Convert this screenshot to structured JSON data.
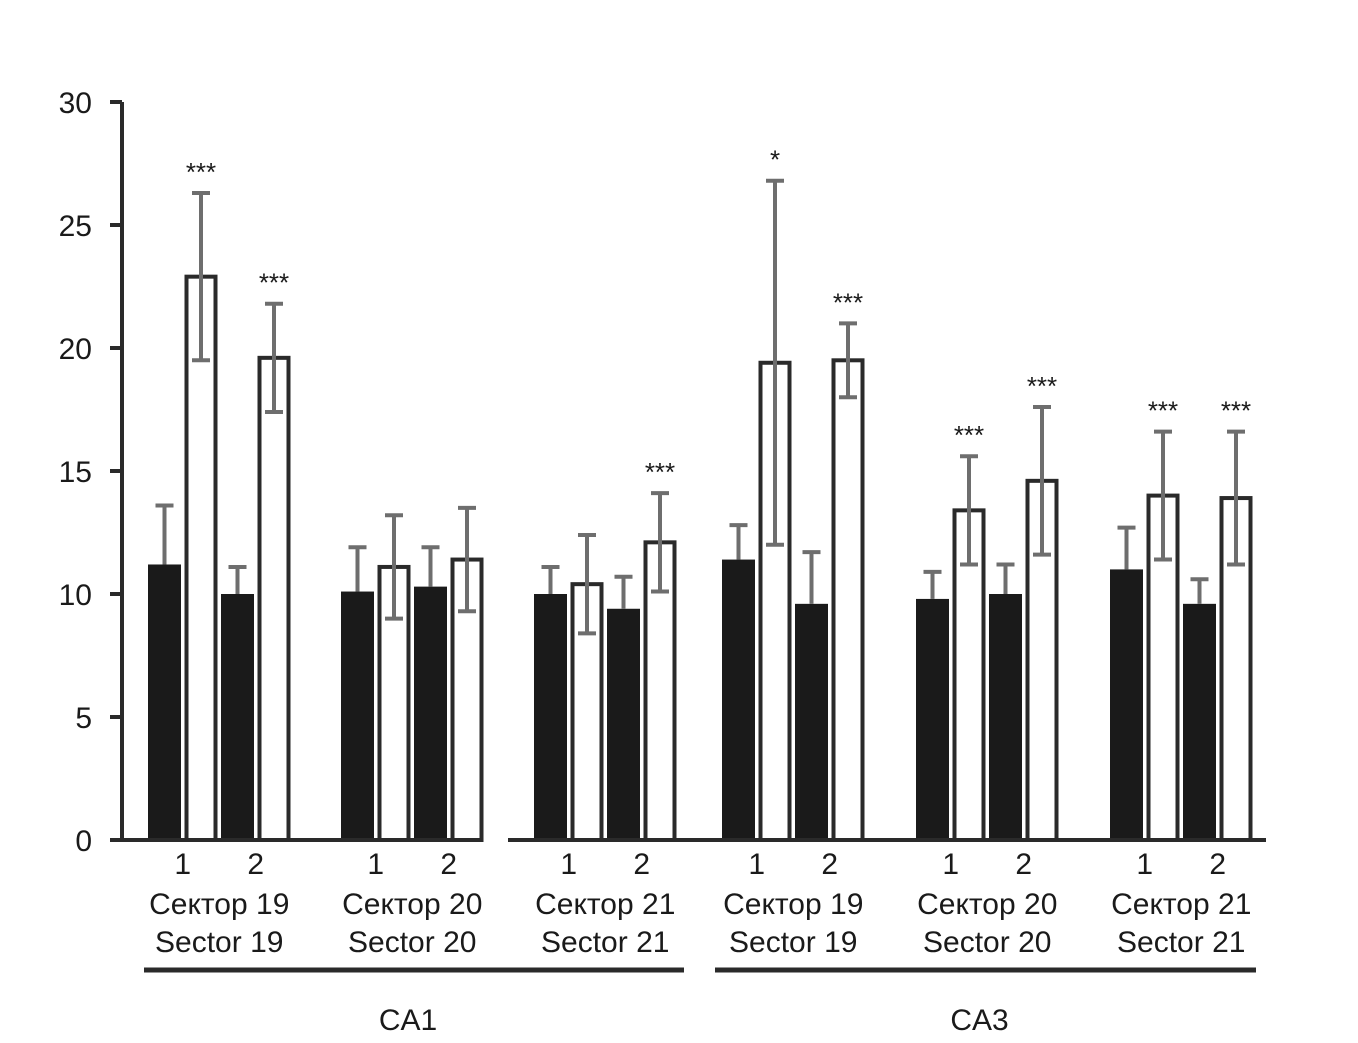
{
  "chart_data": {
    "type": "bar",
    "title": "",
    "xlabel": "",
    "ylabel": "",
    "ylim": [
      0,
      30
    ],
    "yticks": [
      0,
      5,
      10,
      15,
      20,
      25,
      30
    ],
    "grid": false,
    "legend": null,
    "bar_styles": {
      "filled": "#1a1a1a",
      "outlined": "#ffffff",
      "outline": "#2a2a2a",
      "error_bar": "#6e6e6e"
    },
    "supergroups": [
      {
        "label": "CA1",
        "groups": [
          0,
          1,
          2
        ]
      },
      {
        "label": "CA3",
        "groups": [
          3,
          4,
          5
        ]
      }
    ],
    "groups": [
      {
        "label_ru": "Сектор 19",
        "label_en": "Sector 19",
        "region": "CA1",
        "subgroups": [
          {
            "label": "1",
            "black": {
              "value": 11.2,
              "err": 2.4
            },
            "white": {
              "value": 22.9,
              "err": 3.4,
              "sig": "***"
            }
          },
          {
            "label": "2",
            "black": {
              "value": 10.0,
              "err": 1.1
            },
            "white": {
              "value": 19.6,
              "err": 2.2,
              "sig": "***"
            }
          }
        ]
      },
      {
        "label_ru": "Сектор 20",
        "label_en": "Sector 20",
        "region": "CA1",
        "subgroups": [
          {
            "label": "1",
            "black": {
              "value": 10.1,
              "err": 1.8
            },
            "white": {
              "value": 11.1,
              "err": 2.1,
              "sig": ""
            }
          },
          {
            "label": "2",
            "black": {
              "value": 10.3,
              "err": 1.6
            },
            "white": {
              "value": 11.4,
              "err": 2.1,
              "sig": ""
            }
          }
        ]
      },
      {
        "label_ru": "Сектор 21",
        "label_en": "Sector 21",
        "region": "CA1",
        "subgroups": [
          {
            "label": "1",
            "black": {
              "value": 10.0,
              "err": 1.1
            },
            "white": {
              "value": 10.4,
              "err": 2.0,
              "sig": ""
            }
          },
          {
            "label": "2",
            "black": {
              "value": 9.4,
              "err": 1.3
            },
            "white": {
              "value": 12.1,
              "err": 2.0,
              "sig": "***"
            }
          }
        ]
      },
      {
        "label_ru": "Сектор 19",
        "label_en": "Sector 19",
        "region": "CA3",
        "subgroups": [
          {
            "label": "1",
            "black": {
              "value": 11.4,
              "err": 1.4
            },
            "white": {
              "value": 19.4,
              "err": 7.4,
              "sig": "*"
            }
          },
          {
            "label": "2",
            "black": {
              "value": 9.6,
              "err": 2.1
            },
            "white": {
              "value": 19.5,
              "err": 1.5,
              "sig": "***"
            }
          }
        ]
      },
      {
        "label_ru": "Сектор 20",
        "label_en": "Sector 20",
        "region": "CA3",
        "subgroups": [
          {
            "label": "1",
            "black": {
              "value": 9.8,
              "err": 1.1
            },
            "white": {
              "value": 13.4,
              "err": 2.2,
              "sig": "***"
            }
          },
          {
            "label": "2",
            "black": {
              "value": 10.0,
              "err": 1.2
            },
            "white": {
              "value": 14.6,
              "err": 3.0,
              "sig": "***"
            }
          }
        ]
      },
      {
        "label_ru": "Сектор 21",
        "label_en": "Sector 21",
        "region": "CA3",
        "subgroups": [
          {
            "label": "1",
            "black": {
              "value": 11.0,
              "err": 1.7
            },
            "white": {
              "value": 14.0,
              "err": 2.6,
              "sig": "***"
            }
          },
          {
            "label": "2",
            "black": {
              "value": 9.6,
              "err": 1.0
            },
            "white": {
              "value": 13.9,
              "err": 2.7,
              "sig": "***"
            }
          }
        ]
      }
    ]
  }
}
